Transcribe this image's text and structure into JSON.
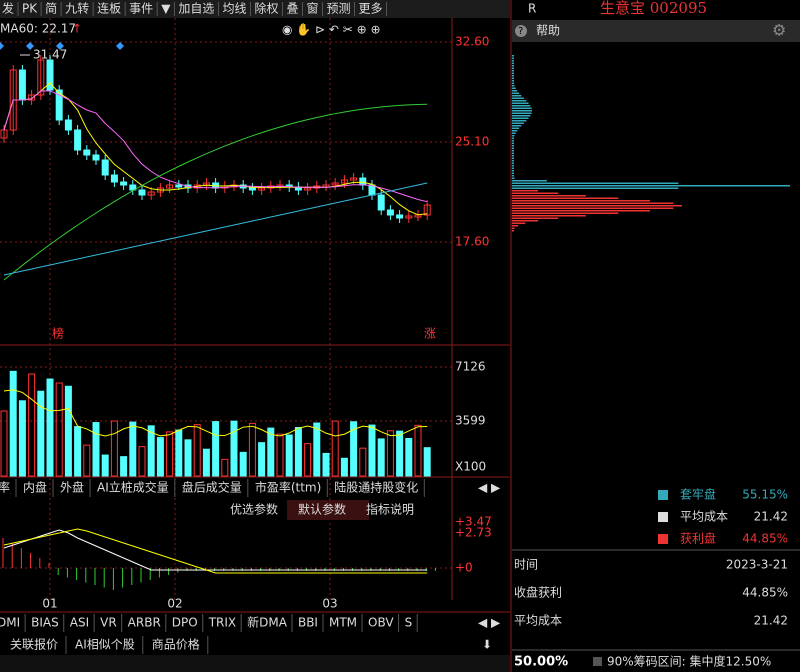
{
  "toolbar": [
    "发",
    "PK",
    "简",
    "九转",
    "连板",
    "事件",
    "▼",
    "加自选",
    "均线",
    "除权",
    "叠",
    "窗",
    "预测",
    "更多"
  ],
  "ma_label": "MA60: 22.17",
  "ma_arrow": "↑",
  "price_axis": [
    "32.60",
    "25.10",
    "17.60"
  ],
  "high_marker": "31.47",
  "markers": [
    "榜",
    "涨"
  ],
  "volume_axis": [
    "7126",
    "3599",
    "X100"
  ],
  "tabs": [
    "率",
    "内盘",
    "外盘",
    "AI立桩成交量",
    "盘后成交量",
    "市盈率(ttm)",
    "陆股通持股变化"
  ],
  "params": [
    "优选参数",
    "默认参数",
    "指标说明"
  ],
  "macd_axis": [
    "+3.47",
    "+2.73",
    "+0"
  ],
  "months": [
    "01",
    "02",
    "03"
  ],
  "indicators": [
    "DMI",
    "BIAS",
    "ASI",
    "VR",
    "ARBR",
    "DPO",
    "TRIX",
    "新DMA",
    "BBI",
    "MTM",
    "OBV",
    "S"
  ],
  "bottom_tabs": [
    "关联报价",
    "AI相似个股",
    "商品价格"
  ],
  "panel": {
    "r": "R",
    "title": "生意宝 002095",
    "help": "帮助",
    "legend": [
      {
        "label": "套牢盘",
        "value": "55.15%"
      },
      {
        "label": "平均成本",
        "value": "21.42"
      },
      {
        "label": "获利盘",
        "value": "44.85%"
      }
    ],
    "rows": [
      {
        "label": "时间",
        "value": "2023-3-21"
      },
      {
        "label": "收盘获利",
        "value": "44.85%"
      },
      {
        "label": "平均成本",
        "value": "21.42"
      }
    ],
    "ratio": "50.00%",
    "range": "90%筹码区间: 集中度12.50%"
  }
}
